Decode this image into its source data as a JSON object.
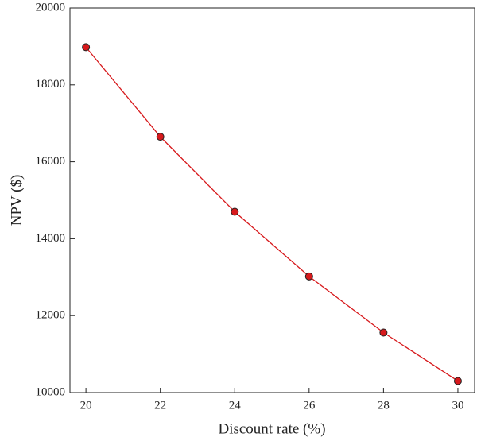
{
  "chart_data": {
    "type": "line",
    "x_label": "Discount rate (%)",
    "y_label": "NPV ($)",
    "x": [
      20,
      22,
      24,
      26,
      28,
      30
    ],
    "series": [
      {
        "name": "NPV",
        "color": "#d7191c",
        "values": [
          18980,
          16650,
          14700,
          13020,
          11560,
          10300
        ]
      }
    ],
    "xlim": [
      19.57,
      30.45
    ],
    "xticks": [
      20,
      22,
      24,
      26,
      28,
      30
    ],
    "ylim": [
      10000,
      20000
    ],
    "yticks": [
      10000,
      12000,
      14000,
      16000,
      18000,
      20000
    ],
    "grid": false
  }
}
